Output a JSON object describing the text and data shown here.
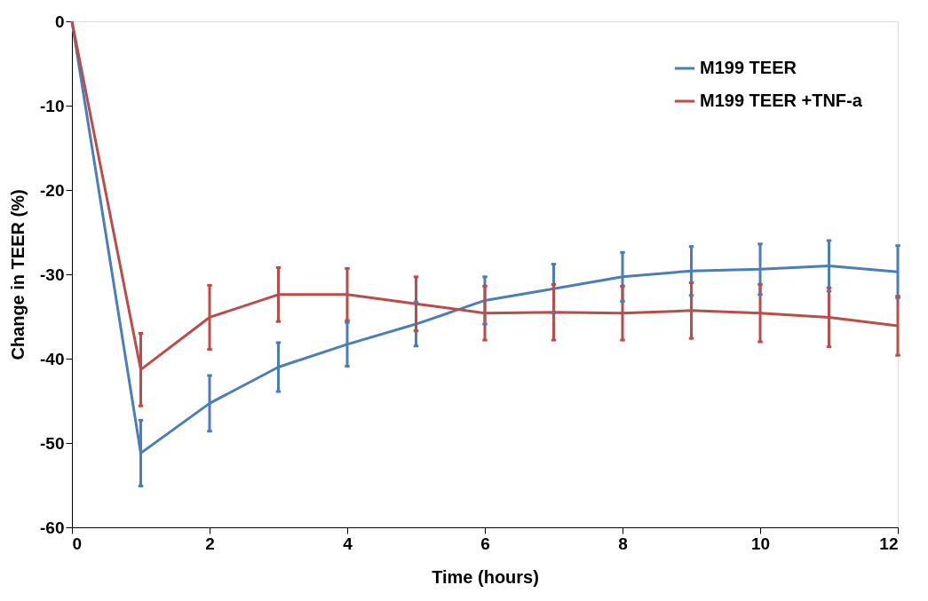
{
  "chart_data": {
    "type": "line",
    "xlabel": "Time (hours)",
    "ylabel": "Change in TEER (%)",
    "x": [
      0,
      1,
      2,
      3,
      4,
      5,
      6,
      7,
      8,
      9,
      10,
      11,
      12
    ],
    "xlim": [
      0,
      12
    ],
    "xticks": [
      0,
      2,
      4,
      6,
      8,
      10,
      12
    ],
    "ylim": [
      -60,
      0
    ],
    "yticks": [
      -60,
      -50,
      -40,
      -30,
      -20,
      -10,
      0
    ],
    "grid": false,
    "legend": "top right",
    "marker": "none",
    "line_style": "solid",
    "series": [
      {
        "name": "M199 TEER",
        "color": "#4a7ebb",
        "values": [
          0,
          -51.2,
          -45.3,
          -41.0,
          -38.3,
          -35.9,
          -33.1,
          -31.7,
          -30.3,
          -29.6,
          -29.4,
          -29.0,
          -29.7
        ],
        "errors": [
          null,
          3.9,
          3.3,
          2.9,
          2.6,
          2.6,
          2.8,
          2.9,
          2.9,
          2.9,
          3.0,
          3.0,
          3.1
        ]
      },
      {
        "name": "M199 TEER +TNF-a",
        "color": "#be4b48",
        "values": [
          0,
          -41.3,
          -35.1,
          -32.4,
          -32.4,
          -33.5,
          -34.6,
          -34.5,
          -34.6,
          -34.3,
          -34.6,
          -35.1,
          -36.1
        ],
        "errors": [
          null,
          4.3,
          3.8,
          3.2,
          3.1,
          3.2,
          3.2,
          3.3,
          3.2,
          3.3,
          3.4,
          3.5,
          3.5
        ]
      }
    ]
  }
}
